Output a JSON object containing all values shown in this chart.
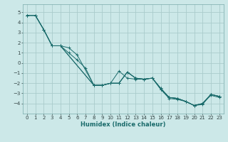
{
  "xlabel": "Humidex (Indice chaleur)",
  "bg_color": "#cce8e8",
  "grid_color": "#aacccc",
  "line_color": "#1a6b6b",
  "spine_color": "#7aabab",
  "xlim": [
    -0.5,
    23.5
  ],
  "ylim": [
    -5.0,
    5.8
  ],
  "yticks": [
    -4,
    -3,
    -2,
    -1,
    0,
    1,
    2,
    3,
    4,
    5
  ],
  "xticks": [
    0,
    1,
    2,
    3,
    4,
    5,
    6,
    7,
    8,
    9,
    10,
    11,
    12,
    13,
    14,
    15,
    16,
    17,
    18,
    19,
    20,
    21,
    22,
    23
  ],
  "tick_labelsize": 5.0,
  "xlabel_fontsize": 6.0,
  "series": [
    {
      "x": [
        0,
        1,
        2,
        3,
        4,
        5,
        6,
        7,
        8,
        9,
        10,
        11,
        12,
        13,
        14,
        15,
        16,
        17,
        18,
        19,
        20,
        21,
        22,
        23
      ],
      "y": [
        4.7,
        4.7,
        3.3,
        1.7,
        1.7,
        1.0,
        0.3,
        -0.5,
        -2.2,
        -2.2,
        -2.0,
        -0.8,
        -1.5,
        -1.6,
        -1.6,
        -1.5,
        -2.6,
        -3.4,
        -3.5,
        -3.8,
        -4.2,
        -4.1,
        -3.1,
        -3.3
      ]
    },
    {
      "x": [
        0,
        1,
        2,
        3,
        4,
        5,
        6,
        8,
        9,
        10,
        11,
        12,
        13,
        14,
        15,
        16,
        17,
        18,
        19,
        20,
        21,
        22,
        23
      ],
      "y": [
        4.7,
        4.7,
        3.3,
        1.7,
        1.7,
        1.5,
        0.8,
        -2.2,
        -2.2,
        -2.0,
        -2.0,
        -0.9,
        -1.5,
        -1.6,
        -1.5,
        -2.5,
        -3.4,
        -3.5,
        -3.8,
        -4.2,
        -4.0,
        -3.1,
        -3.3
      ]
    },
    {
      "x": [
        0,
        1,
        2,
        3,
        4,
        8,
        9,
        10,
        11,
        12,
        13,
        14,
        15,
        16,
        17,
        18,
        19,
        20,
        21,
        22,
        23
      ],
      "y": [
        4.7,
        4.7,
        3.3,
        1.7,
        1.7,
        -2.2,
        -2.2,
        -2.0,
        -2.0,
        -0.9,
        -1.5,
        -1.6,
        -1.5,
        -2.5,
        -3.4,
        -3.5,
        -3.8,
        -4.2,
        -4.0,
        -3.1,
        -3.3
      ]
    },
    {
      "x": [
        0,
        1,
        2,
        3,
        4,
        8,
        9,
        10,
        11,
        12,
        13,
        14,
        15,
        16,
        17,
        18,
        19,
        20,
        21,
        22,
        23
      ],
      "y": [
        4.7,
        4.7,
        3.3,
        1.7,
        1.7,
        -2.2,
        -2.2,
        -2.0,
        -2.0,
        -0.9,
        -1.5,
        -1.6,
        -1.5,
        -2.6,
        -3.5,
        -3.6,
        -3.8,
        -4.2,
        -4.0,
        -3.2,
        -3.4
      ]
    }
  ]
}
